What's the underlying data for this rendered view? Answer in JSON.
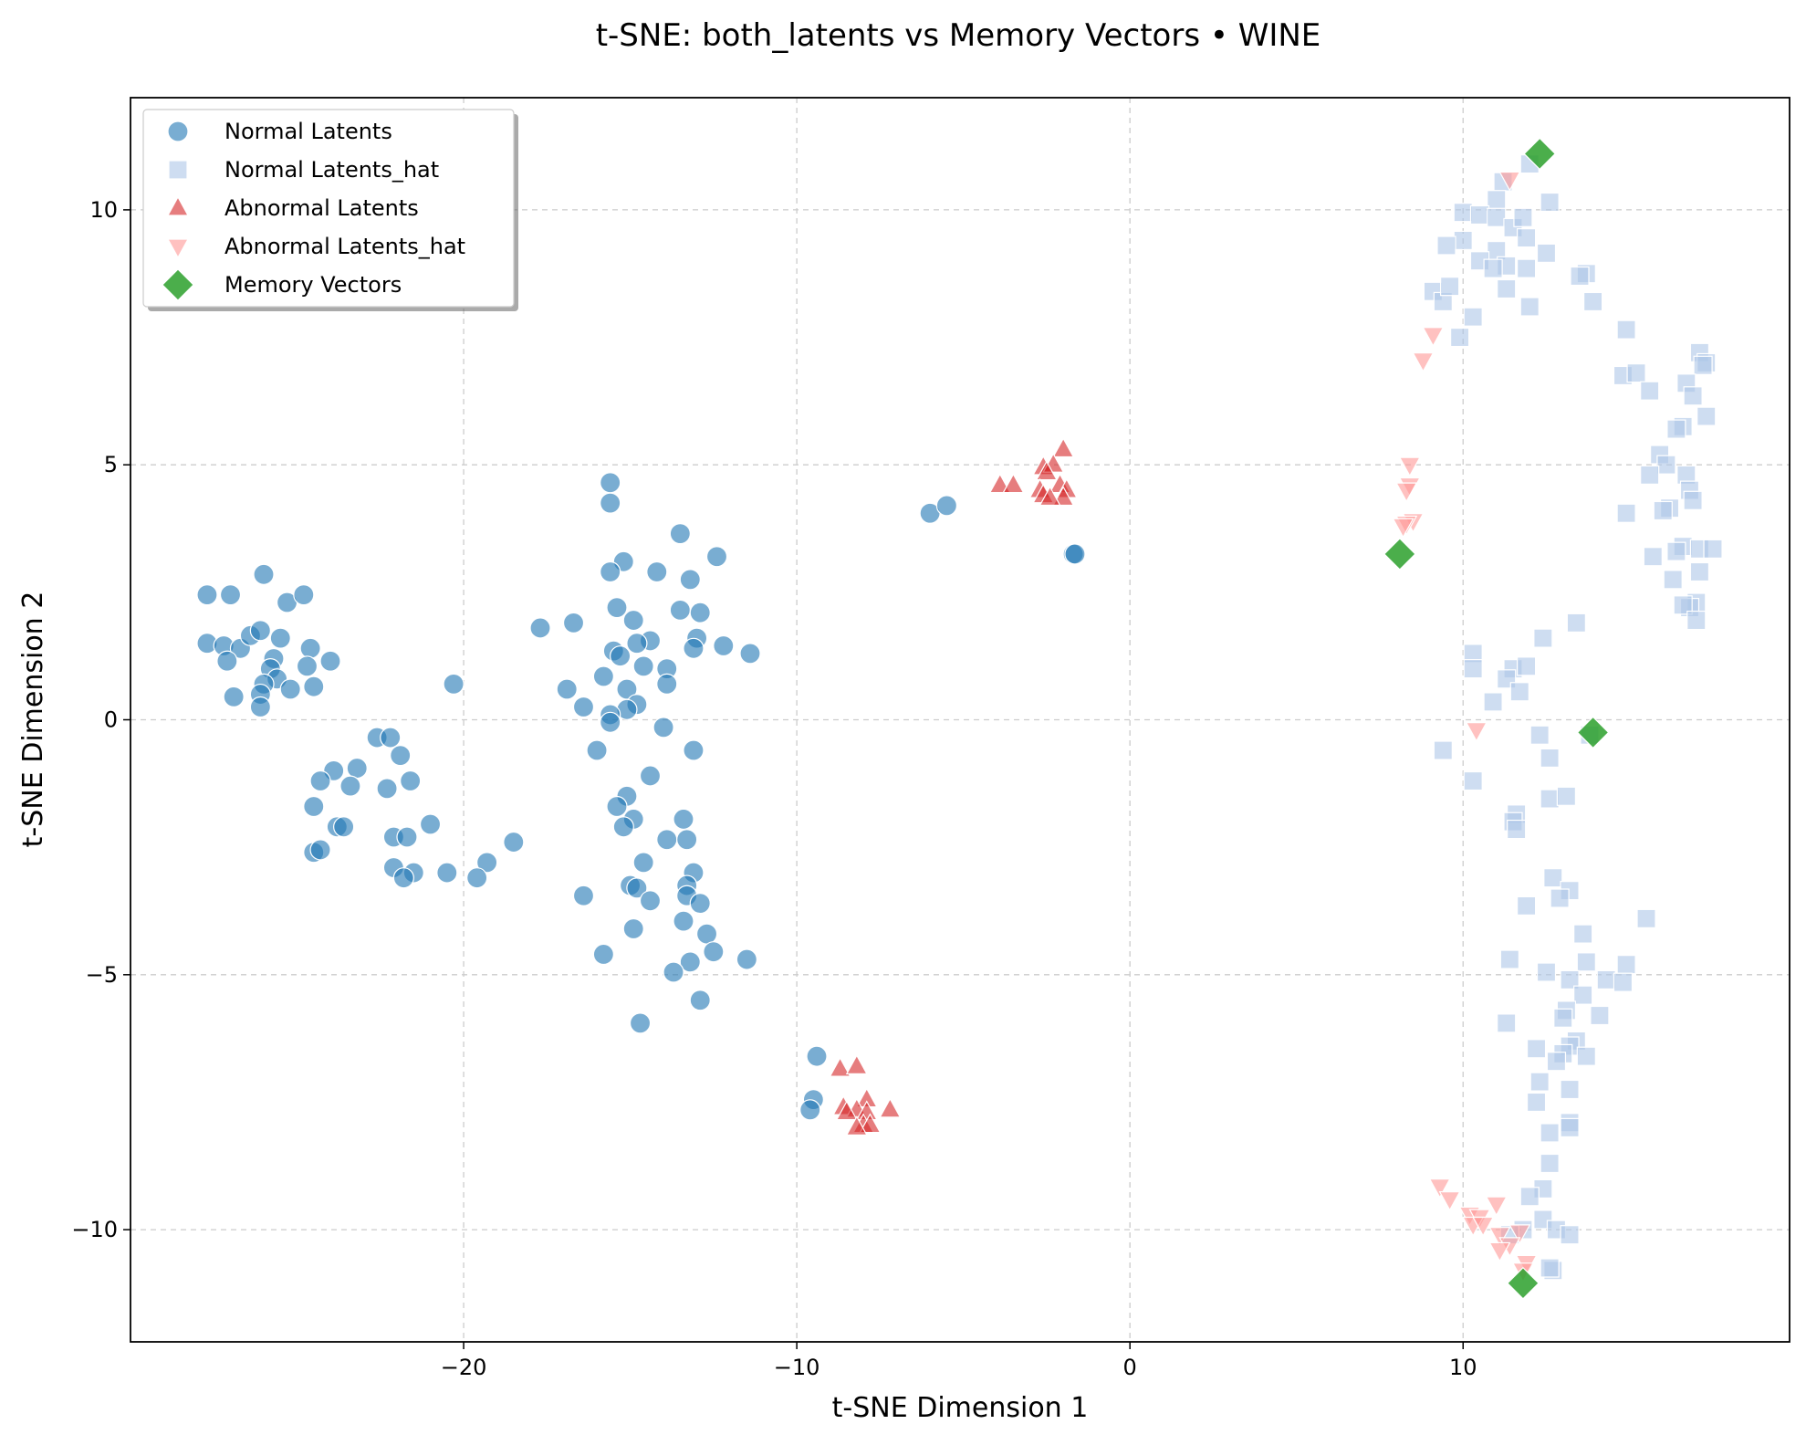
{
  "chart_data": {
    "type": "scatter",
    "title": "t-SNE: both_latents vs Memory Vectors • WINE",
    "xlabel": "t-SNE Dimension 1",
    "ylabel": "t-SNE Dimension 2",
    "xlim": [
      -30,
      19.8
    ],
    "ylim": [
      -12.2,
      12.2
    ],
    "xticks": [
      {
        "value": -20,
        "label": "−20"
      },
      {
        "value": -10,
        "label": "−10"
      },
      {
        "value": 0,
        "label": "0"
      },
      {
        "value": 10,
        "label": "10"
      }
    ],
    "yticks": [
      {
        "value": 10,
        "label": "10"
      },
      {
        "value": 5,
        "label": "5"
      },
      {
        "value": 0,
        "label": "0"
      },
      {
        "value": -5,
        "label": "−5"
      },
      {
        "value": -10,
        "label": "−10"
      }
    ],
    "grid": true,
    "legend": {
      "position": "top-left"
    },
    "series": [
      {
        "name": "Normal Latents",
        "marker": "circle",
        "color": "#1f77b4",
        "points": [
          [
            -27.7,
            2.45
          ],
          [
            -27.0,
            2.45
          ],
          [
            -26.0,
            2.85
          ],
          [
            -25.3,
            2.3
          ],
          [
            -24.8,
            2.45
          ],
          [
            -27.7,
            1.5
          ],
          [
            -27.2,
            1.45
          ],
          [
            -26.7,
            1.4
          ],
          [
            -26.4,
            1.65
          ],
          [
            -26.1,
            1.75
          ],
          [
            -25.5,
            1.6
          ],
          [
            -27.1,
            1.15
          ],
          [
            -25.7,
            1.2
          ],
          [
            -24.6,
            1.4
          ],
          [
            -24.0,
            1.15
          ],
          [
            -24.7,
            1.05
          ],
          [
            -25.8,
            1.0
          ],
          [
            -25.6,
            0.8
          ],
          [
            -26.0,
            0.7
          ],
          [
            -25.2,
            0.6
          ],
          [
            -24.5,
            0.65
          ],
          [
            -26.9,
            0.45
          ],
          [
            -26.1,
            0.5
          ],
          [
            -26.1,
            0.25
          ],
          [
            -22.6,
            -0.35
          ],
          [
            -22.2,
            -0.35
          ],
          [
            -21.9,
            -0.7
          ],
          [
            -23.2,
            -0.95
          ],
          [
            -23.9,
            -1.0
          ],
          [
            -24.3,
            -1.2
          ],
          [
            -23.4,
            -1.3
          ],
          [
            -22.3,
            -1.35
          ],
          [
            -21.6,
            -1.2
          ],
          [
            -24.5,
            -1.7
          ],
          [
            -23.8,
            -2.1
          ],
          [
            -23.6,
            -2.1
          ],
          [
            -21.0,
            -2.05
          ],
          [
            -22.1,
            -2.3
          ],
          [
            -21.7,
            -2.3
          ],
          [
            -24.5,
            -2.6
          ],
          [
            -24.3,
            -2.55
          ],
          [
            -22.1,
            -2.9
          ],
          [
            -21.5,
            -3.0
          ],
          [
            -21.8,
            -3.1
          ],
          [
            -20.5,
            -3.0
          ],
          [
            -19.3,
            -2.8
          ],
          [
            -19.6,
            -3.1
          ],
          [
            -18.5,
            -2.4
          ],
          [
            -20.3,
            0.7
          ],
          [
            -15.6,
            4.65
          ],
          [
            -15.6,
            4.25
          ],
          [
            -13.5,
            3.65
          ],
          [
            -12.4,
            3.2
          ],
          [
            -15.2,
            3.1
          ],
          [
            -14.2,
            2.9
          ],
          [
            -15.6,
            2.9
          ],
          [
            -13.2,
            2.75
          ],
          [
            -17.7,
            1.8
          ],
          [
            -16.7,
            1.9
          ],
          [
            -15.4,
            2.2
          ],
          [
            -13.5,
            2.15
          ],
          [
            -12.9,
            2.1
          ],
          [
            -14.9,
            1.95
          ],
          [
            -14.4,
            1.55
          ],
          [
            -14.8,
            1.5
          ],
          [
            -13.0,
            1.6
          ],
          [
            -13.1,
            1.4
          ],
          [
            -12.2,
            1.45
          ],
          [
            -11.4,
            1.3
          ],
          [
            -15.5,
            1.35
          ],
          [
            -15.3,
            1.25
          ],
          [
            -14.6,
            1.05
          ],
          [
            -13.9,
            1.0
          ],
          [
            -15.8,
            0.85
          ],
          [
            -13.9,
            0.7
          ],
          [
            -16.9,
            0.6
          ],
          [
            -15.1,
            0.6
          ],
          [
            -14.8,
            0.3
          ],
          [
            -16.4,
            0.25
          ],
          [
            -15.1,
            0.2
          ],
          [
            -15.6,
            0.1
          ],
          [
            -15.6,
            -0.05
          ],
          [
            -14.0,
            -0.15
          ],
          [
            -16.0,
            -0.6
          ],
          [
            -13.1,
            -0.6
          ],
          [
            -14.4,
            -1.1
          ],
          [
            -15.1,
            -1.5
          ],
          [
            -15.4,
            -1.7
          ],
          [
            -14.9,
            -1.95
          ],
          [
            -15.2,
            -2.1
          ],
          [
            -13.4,
            -1.95
          ],
          [
            -13.9,
            -2.35
          ],
          [
            -13.3,
            -2.35
          ],
          [
            -14.6,
            -2.8
          ],
          [
            -13.1,
            -3.0
          ],
          [
            -16.4,
            -3.45
          ],
          [
            -15.0,
            -3.25
          ],
          [
            -14.8,
            -3.3
          ],
          [
            -13.3,
            -3.25
          ],
          [
            -13.3,
            -3.45
          ],
          [
            -12.9,
            -3.6
          ],
          [
            -14.4,
            -3.55
          ],
          [
            -13.4,
            -3.95
          ],
          [
            -14.9,
            -4.1
          ],
          [
            -12.7,
            -4.2
          ],
          [
            -12.5,
            -4.55
          ],
          [
            -15.8,
            -4.6
          ],
          [
            -11.5,
            -4.7
          ],
          [
            -13.2,
            -4.75
          ],
          [
            -13.7,
            -4.95
          ],
          [
            -12.9,
            -5.5
          ],
          [
            -14.7,
            -5.95
          ],
          [
            -6.0,
            4.05
          ],
          [
            -5.5,
            4.2
          ],
          [
            -1.7,
            3.25
          ],
          [
            -1.65,
            3.25
          ],
          [
            -9.4,
            -6.6
          ],
          [
            -9.5,
            -7.45
          ],
          [
            -9.6,
            -7.65
          ]
        ]
      },
      {
        "name": "Normal Latents_hat",
        "marker": "square",
        "color": "#aec7e8",
        "points": [
          [
            12.0,
            10.9
          ],
          [
            11.2,
            10.55
          ],
          [
            11.0,
            10.2
          ],
          [
            12.6,
            10.15
          ],
          [
            10.0,
            9.95
          ],
          [
            10.5,
            9.9
          ],
          [
            11.0,
            9.85
          ],
          [
            11.5,
            9.65
          ],
          [
            11.8,
            9.85
          ],
          [
            11.9,
            9.45
          ],
          [
            10.0,
            9.4
          ],
          [
            9.5,
            9.3
          ],
          [
            11.0,
            9.2
          ],
          [
            12.5,
            9.15
          ],
          [
            10.5,
            9.0
          ],
          [
            11.3,
            8.9
          ],
          [
            11.9,
            8.85
          ],
          [
            13.7,
            8.75
          ],
          [
            13.5,
            8.7
          ],
          [
            10.9,
            8.85
          ],
          [
            9.1,
            8.4
          ],
          [
            9.4,
            8.2
          ],
          [
            9.6,
            8.5
          ],
          [
            11.3,
            8.45
          ],
          [
            12.0,
            8.1
          ],
          [
            13.9,
            8.2
          ],
          [
            10.3,
            7.9
          ],
          [
            9.9,
            7.5
          ],
          [
            14.9,
            7.65
          ],
          [
            17.1,
            7.2
          ],
          [
            17.3,
            7.0
          ],
          [
            17.2,
            6.95
          ],
          [
            14.8,
            6.75
          ],
          [
            15.2,
            6.8
          ],
          [
            16.7,
            6.6
          ],
          [
            15.6,
            6.45
          ],
          [
            16.9,
            6.35
          ],
          [
            17.3,
            5.95
          ],
          [
            16.6,
            5.75
          ],
          [
            16.4,
            5.7
          ],
          [
            15.9,
            5.2
          ],
          [
            16.1,
            5.0
          ],
          [
            15.6,
            4.8
          ],
          [
            16.7,
            4.8
          ],
          [
            16.8,
            4.5
          ],
          [
            16.9,
            4.3
          ],
          [
            16.2,
            4.15
          ],
          [
            16.0,
            4.1
          ],
          [
            14.9,
            4.05
          ],
          [
            16.6,
            3.4
          ],
          [
            16.4,
            3.3
          ],
          [
            17.1,
            3.35
          ],
          [
            17.5,
            3.35
          ],
          [
            15.7,
            3.2
          ],
          [
            17.1,
            2.9
          ],
          [
            16.3,
            2.75
          ],
          [
            17.0,
            2.3
          ],
          [
            16.8,
            2.2
          ],
          [
            16.6,
            2.25
          ],
          [
            17.0,
            1.95
          ],
          [
            13.4,
            1.9
          ],
          [
            12.4,
            1.6
          ],
          [
            10.3,
            1.3
          ],
          [
            11.5,
            1.0
          ],
          [
            10.3,
            1.0
          ],
          [
            11.9,
            1.05
          ],
          [
            11.3,
            0.8
          ],
          [
            11.7,
            0.55
          ],
          [
            10.9,
            0.35
          ],
          [
            12.3,
            -0.3
          ],
          [
            13.8,
            -0.3
          ],
          [
            9.4,
            -0.6
          ],
          [
            12.6,
            -0.75
          ],
          [
            10.3,
            -1.2
          ],
          [
            12.6,
            -1.55
          ],
          [
            13.1,
            -1.5
          ],
          [
            11.6,
            -1.85
          ],
          [
            11.5,
            -2.0
          ],
          [
            11.6,
            -2.15
          ],
          [
            12.7,
            -3.1
          ],
          [
            13.2,
            -3.35
          ],
          [
            12.9,
            -3.5
          ],
          [
            11.9,
            -3.65
          ],
          [
            15.5,
            -3.9
          ],
          [
            13.6,
            -4.2
          ],
          [
            11.4,
            -4.7
          ],
          [
            13.7,
            -4.75
          ],
          [
            14.9,
            -4.8
          ],
          [
            12.5,
            -4.95
          ],
          [
            14.3,
            -5.1
          ],
          [
            13.2,
            -5.1
          ],
          [
            14.8,
            -5.15
          ],
          [
            13.6,
            -5.4
          ],
          [
            13.1,
            -5.7
          ],
          [
            14.1,
            -5.8
          ],
          [
            13.0,
            -5.85
          ],
          [
            11.3,
            -5.95
          ],
          [
            13.4,
            -6.3
          ],
          [
            12.2,
            -6.45
          ],
          [
            13.2,
            -6.4
          ],
          [
            13.0,
            -6.55
          ],
          [
            13.7,
            -6.6
          ],
          [
            12.8,
            -6.7
          ],
          [
            12.3,
            -7.1
          ],
          [
            13.2,
            -7.25
          ],
          [
            12.2,
            -7.5
          ],
          [
            13.2,
            -7.9
          ],
          [
            13.2,
            -8.0
          ],
          [
            12.6,
            -8.1
          ],
          [
            12.6,
            -8.7
          ],
          [
            12.4,
            -9.2
          ],
          [
            12.0,
            -9.35
          ],
          [
            12.4,
            -9.8
          ],
          [
            11.8,
            -10.0
          ],
          [
            12.8,
            -10.0
          ],
          [
            11.4,
            -10.1
          ],
          [
            13.2,
            -10.1
          ],
          [
            12.7,
            -10.8
          ],
          [
            12.6,
            -10.75
          ]
        ]
      },
      {
        "name": "Abnormal Latents",
        "marker": "triangle-up",
        "color": "#d62728",
        "points": [
          [
            -2.0,
            5.3
          ],
          [
            -2.6,
            4.95
          ],
          [
            -2.3,
            5.0
          ],
          [
            -2.5,
            4.85
          ],
          [
            -3.9,
            4.6
          ],
          [
            -3.5,
            4.6
          ],
          [
            -2.7,
            4.5
          ],
          [
            -2.1,
            4.6
          ],
          [
            -1.9,
            4.5
          ],
          [
            -2.6,
            4.4
          ],
          [
            -2.0,
            4.35
          ],
          [
            -2.4,
            4.35
          ],
          [
            -8.7,
            -6.85
          ],
          [
            -8.2,
            -6.8
          ],
          [
            -7.9,
            -7.45
          ],
          [
            -8.6,
            -7.6
          ],
          [
            -8.2,
            -7.65
          ],
          [
            -7.2,
            -7.65
          ],
          [
            -8.5,
            -7.7
          ],
          [
            -7.9,
            -7.7
          ],
          [
            -8.0,
            -7.95
          ],
          [
            -7.8,
            -7.95
          ],
          [
            -8.2,
            -8.0
          ]
        ]
      },
      {
        "name": "Abnormal Latents_hat",
        "marker": "triangle-down",
        "color": "#ff9896",
        "points": [
          [
            11.4,
            10.6
          ],
          [
            9.1,
            7.55
          ],
          [
            8.8,
            7.05
          ],
          [
            8.4,
            5.0
          ],
          [
            8.4,
            4.6
          ],
          [
            8.3,
            4.5
          ],
          [
            8.5,
            3.9
          ],
          [
            8.3,
            3.85
          ],
          [
            8.2,
            3.8
          ],
          [
            10.4,
            -0.2
          ],
          [
            9.3,
            -9.15
          ],
          [
            9.6,
            -9.4
          ],
          [
            11.0,
            -9.5
          ],
          [
            10.2,
            -9.7
          ],
          [
            10.5,
            -9.75
          ],
          [
            10.3,
            -9.9
          ],
          [
            10.6,
            -9.9
          ],
          [
            11.1,
            -10.1
          ],
          [
            11.7,
            -10.05
          ],
          [
            11.4,
            -10.3
          ],
          [
            11.1,
            -10.4
          ],
          [
            11.9,
            -10.65
          ],
          [
            11.8,
            -10.8
          ]
        ]
      },
      {
        "name": "Memory Vectors",
        "marker": "diamond",
        "color": "#2ca02c",
        "points": [
          [
            12.3,
            11.1
          ],
          [
            8.1,
            3.25
          ],
          [
            13.9,
            -0.25
          ],
          [
            11.8,
            -11.05
          ]
        ]
      }
    ]
  }
}
